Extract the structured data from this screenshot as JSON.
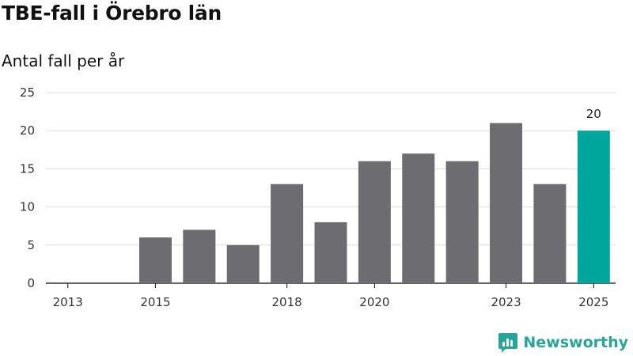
{
  "header": {
    "title": "TBE-fall i Örebro län",
    "subtitle": "Antal fall per år"
  },
  "brand": {
    "name": "Newsworthy"
  },
  "colors": {
    "bar": "#6d6c70",
    "highlight": "#00a69c",
    "grid": "#dddddd",
    "axis": "#333333",
    "brand": "#27a59b"
  },
  "chart_data": {
    "type": "bar",
    "title": "TBE-fall i Örebro län",
    "subtitle": "Antal fall per år",
    "xlabel": "",
    "ylabel": "",
    "categories": [
      "2013",
      "2014",
      "2015",
      "2016",
      "2017",
      "2018",
      "2019",
      "2020",
      "2021",
      "2022",
      "2023",
      "2024",
      "2025"
    ],
    "values": [
      0,
      0,
      6,
      7,
      5,
      13,
      8,
      16,
      17,
      16,
      21,
      13,
      20
    ],
    "x_tick_labels": [
      "2013",
      "2015",
      "2018",
      "2020",
      "2023",
      "2025"
    ],
    "y_ticks": [
      0,
      5,
      10,
      15,
      20,
      25
    ],
    "ylim": [
      0,
      25
    ],
    "highlight_category": "2025",
    "data_labels": [
      {
        "category": "2025",
        "text": "20"
      }
    ],
    "grid": true
  }
}
